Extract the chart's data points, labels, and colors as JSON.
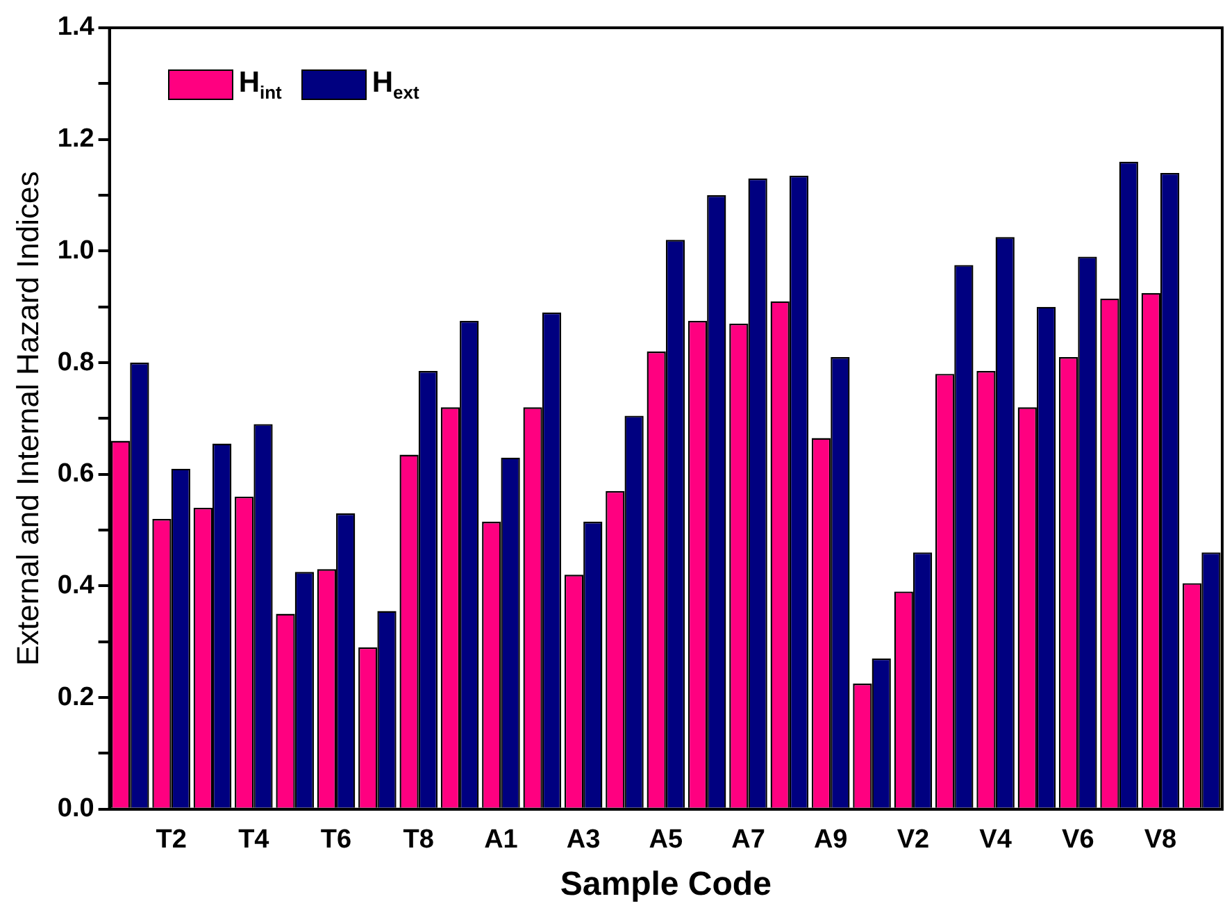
{
  "chart_data": {
    "type": "bar",
    "xlabel": "Sample Code",
    "ylabel": "External and Internal Hazard Indices",
    "categories": [
      null,
      "T2",
      null,
      "T4",
      null,
      "T6",
      null,
      "T8",
      null,
      "A1",
      null,
      "A3",
      null,
      "A5",
      null,
      "A7",
      null,
      "A9",
      null,
      "V2",
      null,
      "V4",
      null,
      "V6",
      null,
      "V8",
      null
    ],
    "series": [
      {
        "name": "H$_{int}$",
        "color": "#ff0080",
        "values": [
          0.66,
          0.52,
          0.54,
          0.56,
          0.35,
          0.43,
          0.29,
          0.635,
          0.72,
          0.515,
          0.72,
          0.42,
          0.57,
          0.82,
          0.875,
          0.87,
          0.91,
          0.665,
          0.225,
          0.39,
          0.78,
          0.785,
          0.72,
          0.81,
          0.915,
          0.925,
          0.405
        ]
      },
      {
        "name": "H$_{ext}$",
        "color": "#000080",
        "values": [
          0.8,
          0.61,
          0.655,
          0.69,
          0.425,
          0.53,
          0.355,
          0.785,
          0.875,
          0.63,
          0.89,
          0.515,
          0.705,
          1.02,
          1.1,
          1.13,
          1.135,
          0.81,
          0.27,
          0.46,
          0.975,
          1.025,
          0.9,
          0.99,
          1.16,
          1.14,
          0.46
        ]
      }
    ],
    "ylim": [
      0,
      1.4
    ],
    "yticks": [
      {
        "value": 0,
        "label": "0.0"
      },
      {
        "value": 0.1,
        "label": null
      },
      {
        "value": 0.2,
        "label": "0.2"
      },
      {
        "value": 0.3,
        "label": null
      },
      {
        "value": 0.4,
        "label": "0.4"
      },
      {
        "value": 0.5,
        "label": null
      },
      {
        "value": 0.6,
        "label": "0.6"
      },
      {
        "value": 0.7,
        "label": null
      },
      {
        "value": 0.8,
        "label": "0.8"
      },
      {
        "value": 0.9,
        "label": null
      },
      {
        "value": 1.0,
        "label": "1.0"
      },
      {
        "value": 1.1,
        "label": null
      },
      {
        "value": 1.2,
        "label": "1.2"
      },
      {
        "value": 1.3,
        "label": null
      },
      {
        "value": 1.4,
        "label": "1.4"
      }
    ],
    "grid": false,
    "legend": "top left"
  }
}
